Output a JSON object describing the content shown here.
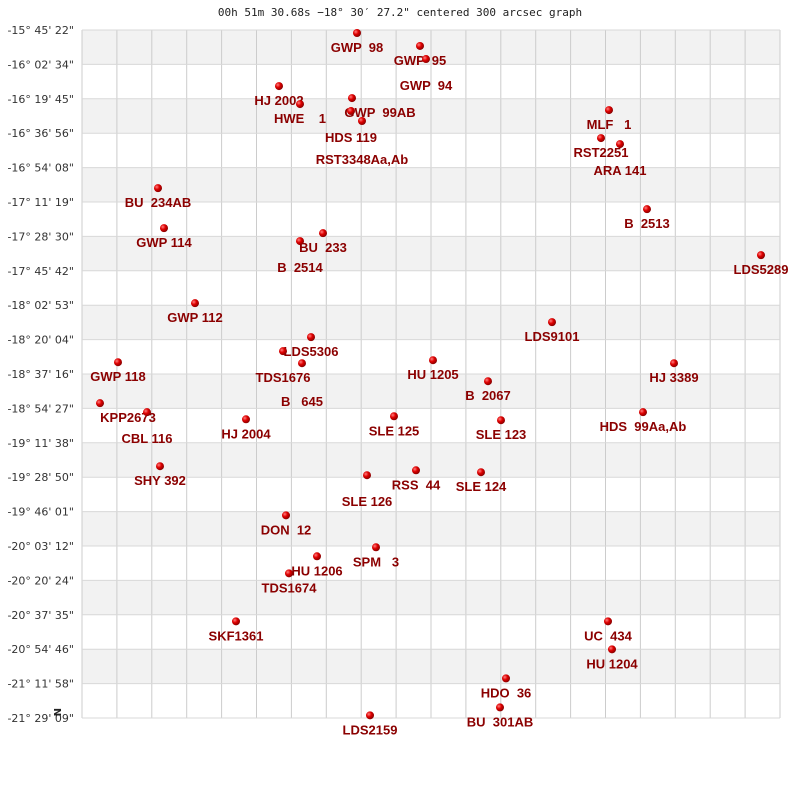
{
  "title": "00h 51m 30.68s −18° 30′ 27.2\" centered 300 arcsec graph",
  "north_marker": "N",
  "chart_data": {
    "type": "scatter",
    "title": "00h 51m 30.68s −18° 30′ 27.2\" centered 300 arcsec graph",
    "xlabel": "",
    "ylabel": "",
    "grid": true,
    "y_tick_labels": [
      "-15° 45' 22\"",
      "-16° 02' 34\"",
      "-16° 19' 45\"",
      "-16° 36' 56\"",
      "-16° 54' 08\"",
      "-17° 11' 19\"",
      "-17° 28' 30\"",
      "-17° 45' 42\"",
      "-18° 02' 53\"",
      "-18° 20' 04\"",
      "-18° 37' 16\"",
      "-18° 54' 27\"",
      "-19° 11' 38\"",
      "-19° 28' 50\"",
      "-19° 46' 01\"",
      "-20° 03' 12\"",
      "-20° 20' 24\"",
      "-20° 37' 35\"",
      "-20° 54' 46\"",
      "-21° 11' 58\"",
      "-21° 29' 09\""
    ],
    "x_unit": "arcmin offset from center",
    "y_unit": "declination (deg)",
    "ylim": [
      -15.756,
      -21.486
    ],
    "marker_color": "#dd0000",
    "label_color": "#8b0000",
    "points": [
      {
        "name": "GWP  98",
        "x": -37,
        "y": -15.781
      },
      {
        "name": "GWP  95",
        "x": -5.5,
        "y": -15.889
      },
      {
        "name": "GWP  94",
        "x": -2.5,
        "y": -15.998
      },
      {
        "name": "HJ 2002",
        "x": -76,
        "y": -16.223
      },
      {
        "name": "HWE    1",
        "x": -65.5,
        "y": -16.373
      },
      {
        "name": "GWP  99AB",
        "x": -39.5,
        "y": -16.323
      },
      {
        "name": "HDS 119",
        "x": -40,
        "y": -16.431
      },
      {
        "name": "RST3348Aa,Ab",
        "x": -34.5,
        "y": -16.514
      },
      {
        "name": "MLF   1",
        "x": 89,
        "y": -16.423
      },
      {
        "name": "RST2251",
        "x": 85,
        "y": -16.656
      },
      {
        "name": "ARA 141",
        "x": 94.5,
        "y": -16.706
      },
      {
        "name": "BU  234AB",
        "x": -136.5,
        "y": -17.073
      },
      {
        "name": "B  2513",
        "x": 108,
        "y": -17.248
      },
      {
        "name": "GWP 114",
        "x": -133.5,
        "y": -17.406
      },
      {
        "name": "BU  233",
        "x": -54,
        "y": -17.448
      },
      {
        "name": "B  2514",
        "x": -65.5,
        "y": -17.514
      },
      {
        "name": "LDS5289",
        "x": 165,
        "y": -17.631
      },
      {
        "name": "GWP 112",
        "x": -118,
        "y": -18.031
      },
      {
        "name": "LDS9101",
        "x": 60.5,
        "y": -18.189
      },
      {
        "name": "LDS5306",
        "x": -60,
        "y": -18.314
      },
      {
        "name": "TDS1676",
        "x": -74,
        "y": -18.431
      },
      {
        "name": "B   645",
        "x": -64.5,
        "y": -18.531
      },
      {
        "name": "HU 1205",
        "x": 1,
        "y": -18.506
      },
      {
        "name": "GWP 118",
        "x": -156.5,
        "y": -18.523
      },
      {
        "name": "HJ 3389",
        "x": 121.5,
        "y": -18.531
      },
      {
        "name": "B  2067",
        "x": 28.5,
        "y": -18.681
      },
      {
        "name": "KPP2673",
        "x": -165.5,
        "y": -18.864
      },
      {
        "name": "CBL 116",
        "x": -142,
        "y": -18.939
      },
      {
        "name": "HDS  99Aa,Ab",
        "x": 106,
        "y": -18.939
      },
      {
        "name": "HJ 2004",
        "x": -92.5,
        "y": -18.998
      },
      {
        "name": "SLE 125",
        "x": -18.5,
        "y": -18.973
      },
      {
        "name": "SLE 123",
        "x": 35,
        "y": -19.006
      },
      {
        "name": "SHY 392",
        "x": -135.5,
        "y": -19.389
      },
      {
        "name": "RSS  44",
        "x": -7.5,
        "y": -19.423
      },
      {
        "name": "SLE 124",
        "x": 25,
        "y": -19.439
      },
      {
        "name": "SLE 126",
        "x": -32,
        "y": -19.464
      },
      {
        "name": "DON  12",
        "x": -72.5,
        "y": -19.798
      },
      {
        "name": "SPM   3",
        "x": -27.5,
        "y": -20.064
      },
      {
        "name": "HU 1206",
        "x": -57,
        "y": -20.139
      },
      {
        "name": "TDS1674",
        "x": -71,
        "y": -20.281
      },
      {
        "name": "SKF1361",
        "x": -97.5,
        "y": -20.681
      },
      {
        "name": "UC  434",
        "x": 88.5,
        "y": -20.681
      },
      {
        "name": "HU 1204",
        "x": 90.5,
        "y": -20.914
      },
      {
        "name": "HDO  36",
        "x": 37.5,
        "y": -21.156
      },
      {
        "name": "BU  301AB",
        "x": 34.5,
        "y": -21.398
      },
      {
        "name": "LDS2159",
        "x": -30.5,
        "y": -21.464
      }
    ]
  }
}
